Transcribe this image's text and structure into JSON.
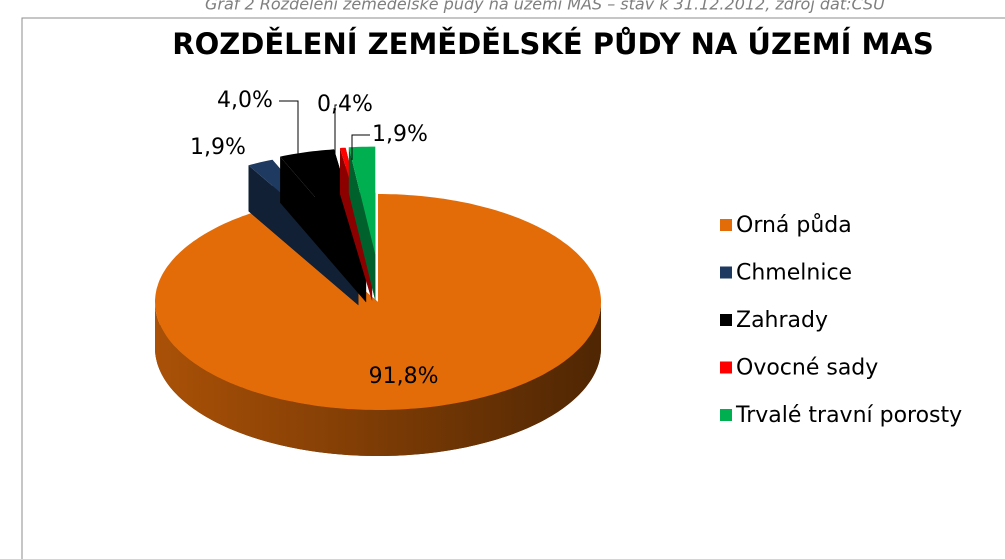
{
  "chart_data": {
    "type": "pie",
    "caption": "Graf 2  Rozdělení zemědělské půdy na území MAS – stav k 31.12.2012, zdroj dat:ČSÚ",
    "title": "ROZDĚLENÍ ZEMĚDĚLSKÉ PŮDY NA ÚZEMÍ MAS",
    "categories": [
      "Orná půda",
      "Chmelnice",
      "Zahrady",
      "Ovocné sady",
      "Trvalé travní porosty"
    ],
    "values": [
      91.8,
      1.9,
      4.0,
      0.4,
      1.9
    ],
    "value_labels": [
      "91,8%",
      "1,9%",
      "4,0%",
      "0,4%",
      "1,9%"
    ],
    "colors": [
      "#e36c09",
      "#1f3a60",
      "#000000",
      "#ff0000",
      "#00b050"
    ],
    "legend": "right"
  }
}
